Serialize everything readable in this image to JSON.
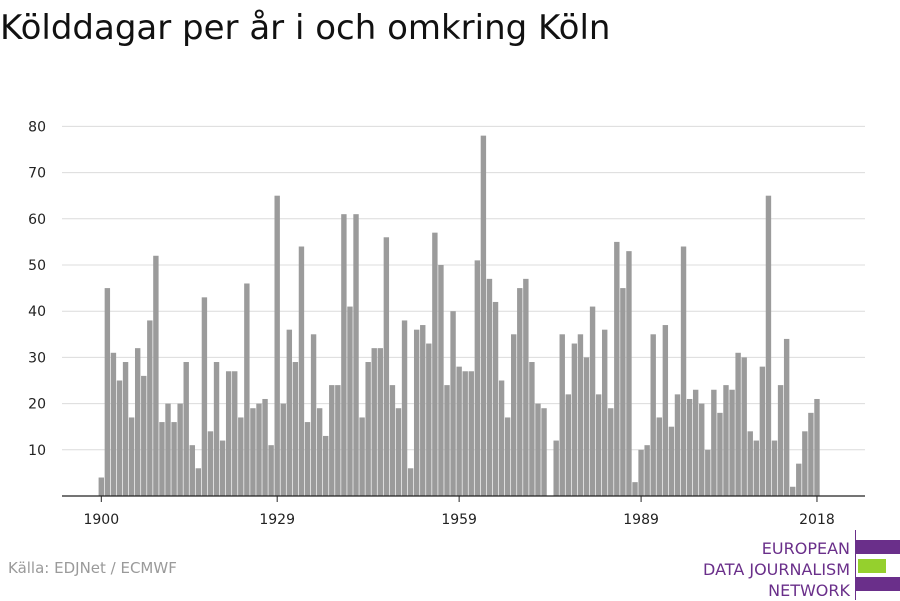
{
  "header": {
    "title": "Kölddagar per år i och omkring Köln"
  },
  "footer": {
    "source": "Källa: EDJNet / ECMWF"
  },
  "logo": {
    "line1": "EUROPEAN",
    "line2": "DATA JOURNALISM",
    "line3": "NETWORK",
    "colors": {
      "purple": "#6a2f8a",
      "green": "#95d02d"
    }
  },
  "chart_data": {
    "type": "bar",
    "title": "Kölddagar per år i och omkring Köln",
    "xlabel": "",
    "ylabel": "",
    "bar_color": "#9b9b9b",
    "ylim": [
      0,
      85
    ],
    "yticks": [
      10,
      20,
      30,
      40,
      50,
      60,
      70,
      80
    ],
    "xticks": [
      1900,
      1929,
      1959,
      1989,
      2018
    ],
    "grid": true,
    "x": [
      1900,
      1901,
      1902,
      1903,
      1904,
      1905,
      1906,
      1907,
      1908,
      1909,
      1910,
      1911,
      1912,
      1913,
      1914,
      1915,
      1916,
      1917,
      1918,
      1919,
      1920,
      1921,
      1922,
      1923,
      1924,
      1925,
      1926,
      1927,
      1928,
      1929,
      1930,
      1931,
      1932,
      1933,
      1934,
      1935,
      1936,
      1937,
      1938,
      1939,
      1940,
      1941,
      1942,
      1943,
      1944,
      1945,
      1946,
      1947,
      1948,
      1949,
      1950,
      1951,
      1952,
      1953,
      1954,
      1955,
      1956,
      1957,
      1958,
      1959,
      1960,
      1961,
      1962,
      1963,
      1964,
      1965,
      1966,
      1967,
      1968,
      1969,
      1970,
      1971,
      1972,
      1973,
      1974,
      1975,
      1976,
      1977,
      1978,
      1979,
      1980,
      1981,
      1982,
      1983,
      1984,
      1985,
      1986,
      1987,
      1988,
      1989,
      1990,
      1991,
      1992,
      1993,
      1994,
      1995,
      1996,
      1997,
      1998,
      1999,
      2000,
      2001,
      2002,
      2003,
      2004,
      2005,
      2006,
      2007,
      2008,
      2009,
      2010,
      2011,
      2012,
      2013,
      2014,
      2015,
      2016,
      2017,
      2018
    ],
    "values": [
      4,
      45,
      31,
      25,
      29,
      17,
      32,
      26,
      38,
      52,
      16,
      20,
      16,
      20,
      29,
      11,
      6,
      43,
      14,
      29,
      12,
      27,
      27,
      17,
      46,
      19,
      20,
      21,
      11,
      65,
      20,
      36,
      29,
      54,
      16,
      35,
      19,
      13,
      24,
      24,
      61,
      41,
      61,
      17,
      29,
      32,
      32,
      56,
      24,
      19,
      38,
      6,
      36,
      37,
      33,
      57,
      50,
      24,
      40,
      28,
      27,
      27,
      51,
      78,
      47,
      42,
      25,
      17,
      35,
      45,
      47,
      29,
      20,
      19,
      0,
      12,
      35,
      22,
      33,
      35,
      30,
      41,
      22,
      36,
      19,
      55,
      45,
      53,
      3,
      10,
      11,
      35,
      17,
      37,
      15,
      22,
      54,
      21,
      23,
      20,
      10,
      23,
      18,
      24,
      23,
      31,
      30,
      14,
      12,
      28,
      65,
      12,
      24,
      34,
      2,
      7,
      14,
      18,
      21
    ]
  }
}
